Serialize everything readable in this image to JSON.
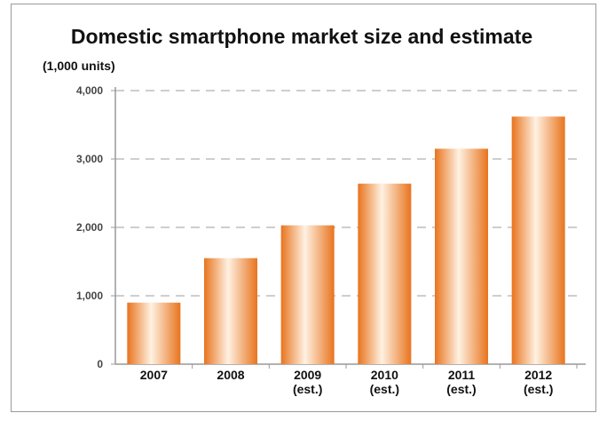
{
  "chart_data": {
    "type": "bar",
    "title": "Domestic smartphone market size and estimate",
    "ylabel": "(1,000 units)",
    "xlabel": "",
    "categories": [
      "2007",
      "2008",
      "2009",
      "2010",
      "2011",
      "2012"
    ],
    "category_notes": [
      "",
      "",
      "(est.)",
      "(est.)",
      "(est.)",
      "(est.)"
    ],
    "values": [
      900,
      1550,
      2030,
      2640,
      3150,
      3620
    ],
    "ylim": [
      0,
      4000
    ],
    "yticks": [
      0,
      1000,
      2000,
      3000,
      4000
    ],
    "ytick_labels": [
      "0",
      "1,000",
      "2,000",
      "3,000",
      "4,000"
    ],
    "grid": true,
    "colors": {
      "bar_edge": "#e8741e",
      "bar_center": "#fff1e2",
      "grid": "#b0b0b0",
      "axis": "#999999"
    }
  }
}
